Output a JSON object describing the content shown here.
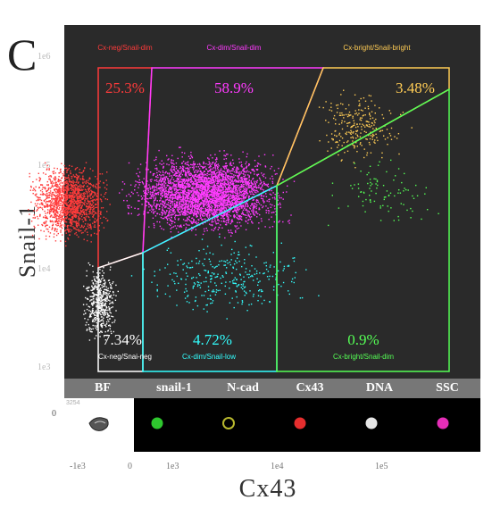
{
  "panel_letter": "C",
  "chart_data": {
    "type": "scatter",
    "xlabel": "Cx43",
    "ylabel": "Snail-1",
    "x_scale": "log",
    "y_scale": "log",
    "x_ticks": [
      "-1e3",
      "0",
      "1e3",
      "1e4",
      "1e5"
    ],
    "y_ticks": [
      "1e6",
      "1e5",
      "1e4",
      "1e3"
    ],
    "zero_label": "0",
    "grid": false,
    "background": "#2a2a2a",
    "gates": [
      {
        "name": "Cx-neg/Snail-dim",
        "percent": "25.3%",
        "color": "#ff3b3b"
      },
      {
        "name": "Cx-dim/Snail-dim",
        "percent": "58.9%",
        "color": "#ff3bff"
      },
      {
        "name": "Cx-bright/Snail-bright",
        "percent": "3.48%",
        "color": "#ffcc55"
      },
      {
        "name": "Cx-neg/Snai-neg",
        "percent": "7.34%",
        "color": "#ffffff"
      },
      {
        "name": "Cx-dim/Snail-low",
        "percent": "4.72%",
        "color": "#33ffff"
      },
      {
        "name": "Cx-bright/Snail-dim",
        "percent": "0.9%",
        "color": "#55ff55"
      }
    ],
    "populations": [
      {
        "gate": "Cx-neg/Snail-dim",
        "x_range": [
          100,
          450
        ],
        "y_range": [
          12000,
          80000
        ],
        "weight": 25.3
      },
      {
        "gate": "Cx-dim/Snail-dim",
        "x_range": [
          450,
          9000
        ],
        "y_range": [
          14000,
          100000
        ],
        "weight": 58.9
      },
      {
        "gate": "Cx-bright/Snail-bright",
        "x_range": [
          10000,
          60000
        ],
        "y_range": [
          60000,
          350000
        ],
        "weight": 3.48
      },
      {
        "gate": "Cx-neg/Snai-neg",
        "x_range": [
          250,
          500
        ],
        "y_range": [
          1500,
          10000
        ],
        "weight": 7.34
      },
      {
        "gate": "Cx-dim/Snail-low",
        "x_range": [
          500,
          15000
        ],
        "y_range": [
          2500,
          18000
        ],
        "weight": 4.72
      },
      {
        "gate": "Cx-bright/Snail-dim",
        "x_range": [
          11000,
          120000
        ],
        "y_range": [
          15000,
          90000
        ],
        "weight": 0.9
      }
    ]
  },
  "image_strip": {
    "channels": [
      "BF",
      "snail-1",
      "N-cad",
      "Cx43",
      "DNA",
      "SSC"
    ],
    "thumb_label": "3254",
    "spot_colors": [
      "#dddddd",
      "#33dd33",
      "#cccc33",
      "#ff3333",
      "#ffffff",
      "#ff33cc"
    ]
  }
}
